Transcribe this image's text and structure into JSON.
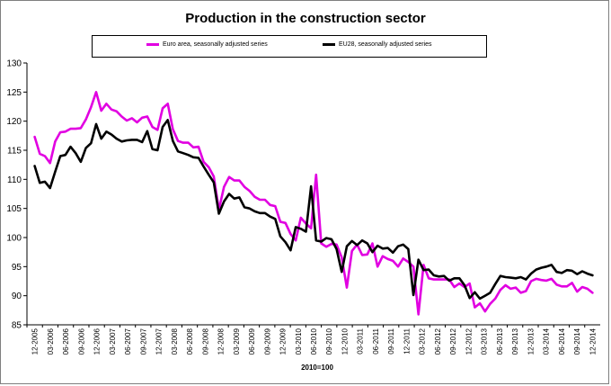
{
  "chart_data": {
    "type": "line",
    "title": "Production in the construction sector",
    "xlabel": "2010=100",
    "ylabel": "",
    "ylim": [
      85,
      130
    ],
    "yticks": [
      85,
      90,
      95,
      100,
      105,
      110,
      115,
      120,
      125,
      130
    ],
    "grid": false,
    "legend_position": "top",
    "x_tick_labels": [
      "12-2005",
      "03-2006",
      "06-2006",
      "09-2006",
      "12-2006",
      "03-2007",
      "06-2007",
      "09-2007",
      "12-2007",
      "03-2008",
      "06-2008",
      "09-2008",
      "12-2008",
      "03-2009",
      "06-2009",
      "09-2009",
      "12-2009",
      "03-2010",
      "06-2010",
      "09-2010",
      "12-2010",
      "03-2011",
      "06-2011",
      "09-2011",
      "12-2011",
      "03-2012",
      "06-2012",
      "09-2012",
      "12-2012",
      "03-2013",
      "06-2013",
      "09-2013",
      "12-2013",
      "03-2014",
      "06-2014",
      "09-2014",
      "12-2014"
    ],
    "series": [
      {
        "name": "Euro area, seasonally adjusted series",
        "color": "#e100e1",
        "values": [
          117.3,
          114.4,
          114.0,
          112.8,
          116.5,
          118.1,
          118.2,
          118.7,
          118.7,
          118.8,
          120.3,
          122.4,
          125.0,
          121.8,
          123.0,
          122.0,
          121.7,
          120.8,
          120.1,
          120.5,
          119.8,
          120.6,
          120.8,
          119.0,
          118.5,
          122.2,
          123.0,
          118.6,
          116.6,
          116.3,
          116.3,
          115.5,
          115.6,
          113.0,
          112.1,
          110.5,
          104.8,
          108.7,
          110.4,
          109.8,
          109.8,
          108.7,
          108.0,
          107.0,
          106.5,
          106.5,
          105.6,
          105.4,
          102.7,
          102.5,
          100.6,
          99.5,
          103.4,
          102.4,
          101.6,
          110.8,
          99.0,
          98.4,
          98.9,
          98.8,
          96.6,
          91.4,
          97.7,
          98.8,
          97.0,
          97.1,
          99.0,
          95.0,
          96.8,
          96.3,
          96.0,
          95.0,
          96.4,
          95.8,
          95.0,
          86.8,
          95.3,
          93.0,
          92.8,
          92.8,
          92.8,
          92.8,
          91.5,
          92.1,
          91.5,
          92.1,
          88.0,
          88.7,
          87.3,
          88.6,
          89.5,
          91.0,
          91.8,
          91.2,
          91.4,
          90.5,
          90.8,
          92.5,
          92.9,
          92.7,
          92.6,
          92.9,
          91.9,
          91.6,
          91.6,
          92.2,
          90.7,
          91.5,
          91.2,
          90.5
        ]
      },
      {
        "name": "EU28, seasonally adjusted series",
        "color": "#000000",
        "values": [
          112.3,
          109.4,
          109.6,
          108.5,
          111.3,
          114.0,
          114.2,
          115.6,
          114.5,
          113.0,
          115.4,
          116.2,
          119.5,
          117.0,
          118.2,
          117.7,
          117.0,
          116.5,
          116.7,
          116.8,
          116.8,
          116.4,
          118.3,
          115.2,
          115.0,
          119.0,
          120.2,
          116.6,
          114.8,
          114.5,
          114.2,
          113.8,
          113.7,
          112.2,
          110.8,
          109.5,
          104.1,
          106.2,
          107.5,
          106.7,
          106.9,
          105.2,
          105.0,
          104.5,
          104.2,
          104.2,
          103.6,
          103.2,
          100.2,
          99.2,
          97.8,
          101.8,
          101.5,
          101.0,
          108.8,
          99.5,
          99.3,
          99.9,
          99.7,
          98.0,
          94.1,
          98.5,
          99.4,
          98.7,
          99.5,
          99.0,
          97.5,
          98.6,
          98.1,
          98.2,
          97.4,
          98.5,
          98.8,
          98.0,
          90.1,
          96.2,
          94.4,
          94.5,
          93.5,
          93.3,
          93.4,
          92.6,
          93.0,
          93.0,
          91.8,
          89.6,
          90.6,
          89.5,
          90.0,
          90.5,
          92.0,
          93.4,
          93.2,
          93.1,
          93.0,
          93.2,
          92.8,
          93.8,
          94.5,
          94.8,
          95.0,
          95.3,
          94.1,
          93.9,
          94.4,
          94.3,
          93.7,
          94.2,
          93.8,
          93.5
        ]
      }
    ]
  }
}
